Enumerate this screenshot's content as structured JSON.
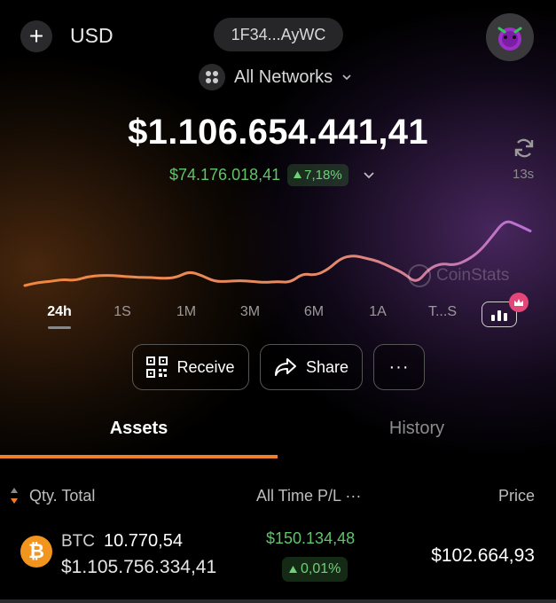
{
  "header": {
    "add_label": "+",
    "currency": "USD",
    "wallet_address": "1F34...AyWC",
    "network_label": "All Networks"
  },
  "portfolio": {
    "total_value": "$1.106.654.441,41",
    "change_value": "$74.176.018,41",
    "change_percent": "7,18%",
    "refresh_age": "13s"
  },
  "chart_data": {
    "type": "line",
    "period": "24h",
    "x": [
      0,
      1,
      2,
      3,
      4,
      5,
      6,
      7,
      8,
      9,
      10,
      11,
      12,
      13,
      14,
      15,
      16,
      17,
      18,
      19,
      20,
      21,
      22,
      23,
      24,
      25,
      26,
      27,
      28,
      29,
      30,
      31,
      32,
      33,
      34,
      35,
      36,
      37,
      38,
      39,
      40
    ],
    "values": [
      8,
      11,
      12,
      14,
      13,
      17,
      18,
      18,
      17,
      16,
      16,
      15,
      16,
      22,
      18,
      12,
      12,
      13,
      12,
      11,
      12,
      11,
      20,
      18,
      24,
      35,
      38,
      35,
      32,
      26,
      20,
      10,
      25,
      30,
      28,
      33,
      42,
      57,
      73,
      68,
      62
    ],
    "grid": false,
    "legend": "none",
    "colors": [
      "#f0883e",
      "#b86fd8"
    ]
  },
  "watermark": "CoinStats",
  "periods": [
    {
      "label": "24h",
      "active": true
    },
    {
      "label": "1S",
      "active": false
    },
    {
      "label": "1M",
      "active": false
    },
    {
      "label": "3M",
      "active": false
    },
    {
      "label": "6M",
      "active": false
    },
    {
      "label": "1A",
      "active": false
    },
    {
      "label": "T...S",
      "active": false
    }
  ],
  "actions": {
    "receive": "Receive",
    "share": "Share",
    "more": "···"
  },
  "tabs": {
    "assets": "Assets",
    "history": "History"
  },
  "list_header": {
    "qty_total": "Qty. Total",
    "pl": "All Time P/L ···",
    "price": "Price"
  },
  "assets": [
    {
      "symbol": "BTC",
      "icon": "bitcoin-icon",
      "quantity": "10.770,54",
      "value": "$1.105.756.334,41",
      "pl_value": "$150.134,48",
      "pl_percent": "0,01%",
      "price": "$102.664,93"
    }
  ],
  "colors": {
    "positive": "#5ec56a",
    "accent": "#f07f2c",
    "bitcoin": "#f2951f",
    "chart_start": "#f0883e",
    "chart_end": "#b86fd8"
  }
}
